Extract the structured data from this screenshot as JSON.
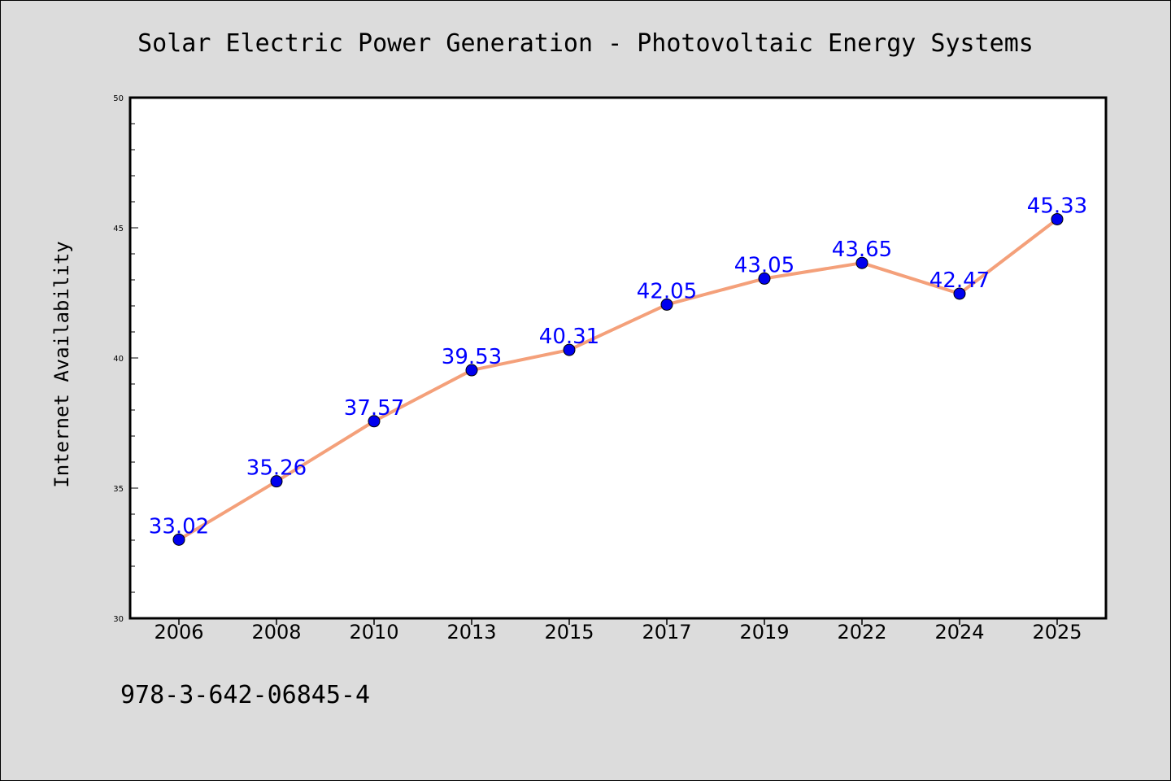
{
  "chart_data": {
    "type": "line",
    "title": "Solar Electric Power Generation - Photovoltaic Energy Systems",
    "xlabel": "",
    "ylabel": "Internet Availability",
    "categories": [
      "2006",
      "2008",
      "2010",
      "2013",
      "2015",
      "2017",
      "2019",
      "2022",
      "2024",
      "2025"
    ],
    "series": [
      {
        "values": [
          33.02,
          35.26,
          37.57,
          39.53,
          40.31,
          42.05,
          43.05,
          43.65,
          42.47,
          45.33
        ],
        "labels": [
          "33.02",
          "35.26",
          "37.57",
          "39.53",
          "40.31",
          "42.05",
          "43.05",
          "43.65",
          "42.47",
          "45.33"
        ],
        "line_color": "#f4a07a",
        "marker_color": "#0000ee"
      }
    ],
    "ylim": [
      30,
      50
    ],
    "yticks": [
      "30",
      "35",
      "40",
      "45",
      "50"
    ],
    "grid": false,
    "legend": "none",
    "label_color": "#0000ff"
  },
  "footnote": "978-3-642-06845-4",
  "colors": {
    "background": "#dcdcdc",
    "plot_area": "#ffffff"
  }
}
